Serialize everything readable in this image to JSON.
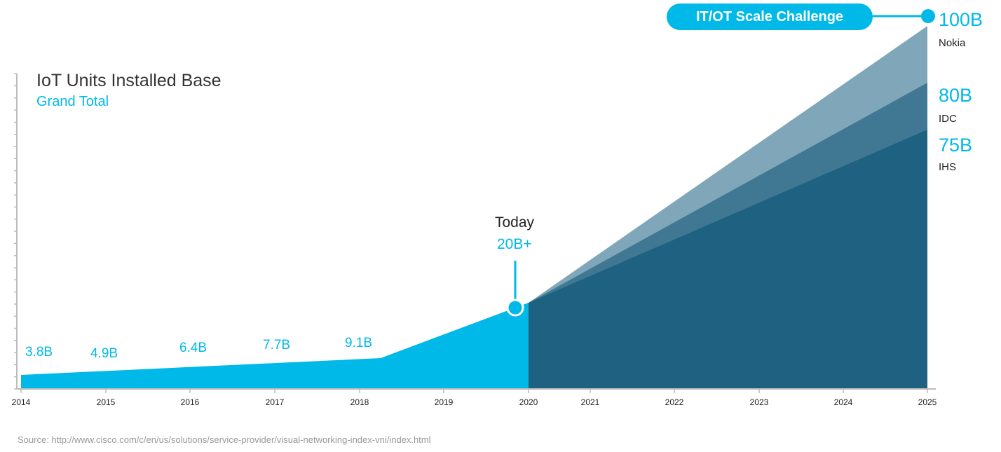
{
  "chart_data": {
    "type": "area",
    "title": "IoT Units Installed Base",
    "subtitle": "Grand Total",
    "x_ticks": [
      "2014",
      "2015",
      "2016",
      "2017",
      "2018",
      "2019",
      "2020",
      "2021",
      "2022",
      "2023",
      "2024",
      "2025"
    ],
    "history": {
      "labels": [
        "3.8B",
        "4.9B",
        "6.4B",
        "7.7B",
        "9.1B"
      ],
      "points": [
        {
          "x": 2014,
          "y": 3.8
        },
        {
          "x": 2018.25,
          "y": 9.1
        },
        {
          "x": 2020,
          "y": 20
        }
      ],
      "color": "#00b9e8"
    },
    "today": {
      "label": "Today",
      "value": "20B+"
    },
    "forecasts": [
      {
        "name": "Nokia",
        "value_label": "100B",
        "start": 20,
        "end": 100,
        "color": "#80a7b9"
      },
      {
        "name": "IDC",
        "value_label": "80B",
        "start": 20,
        "end": 80,
        "color": "#407893"
      },
      {
        "name": "IHS",
        "value_label": "75B",
        "start": 20,
        "end": 75,
        "color": "#1f6180"
      }
    ],
    "callout": "IT/OT Scale Challenge",
    "grid": false
  },
  "source": "Source: http://www.cisco.com/c/en/us/solutions/service-provider/visual-networking-index-vni/index.html"
}
